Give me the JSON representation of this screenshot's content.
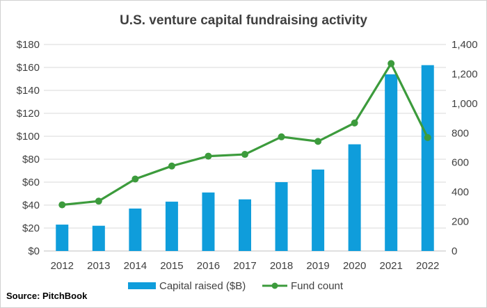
{
  "chart_data": {
    "type": "bar",
    "title": "U.S. venture capital fundraising activity",
    "categories": [
      "2012",
      "2013",
      "2014",
      "2015",
      "2016",
      "2017",
      "2018",
      "2019",
      "2020",
      "2021",
      "2022"
    ],
    "series": [
      {
        "name": "Capital raised ($B)",
        "type": "bar",
        "axis": "left",
        "color": "#0f9ddb",
        "values": [
          23,
          22,
          37,
          43,
          51,
          45,
          60,
          71,
          93,
          154,
          162
        ]
      },
      {
        "name": "Fund count",
        "type": "line",
        "axis": "right",
        "color": "#3c9b3c",
        "values": [
          313,
          338,
          488,
          576,
          643,
          655,
          774,
          743,
          868,
          1271,
          769
        ]
      }
    ],
    "y_left": {
      "ylim": [
        0,
        180
      ],
      "ticks": [
        0,
        20,
        40,
        60,
        80,
        100,
        120,
        140,
        160,
        180
      ],
      "tick_labels": [
        "$0",
        "$20",
        "$40",
        "$60",
        "$80",
        "$100",
        "$120",
        "$140",
        "$160",
        "$180"
      ]
    },
    "y_right": {
      "ylim": [
        0,
        1400
      ],
      "ticks": [
        0,
        200,
        400,
        600,
        800,
        1000,
        1200,
        1400
      ],
      "tick_labels": [
        "0",
        "200",
        "400",
        "600",
        "800",
        "1,000",
        "1,200",
        "1,400"
      ]
    },
    "grid": true,
    "grid_color": "#d9d9d9",
    "legend_position": "bottom"
  },
  "source": "Source: PitchBook"
}
